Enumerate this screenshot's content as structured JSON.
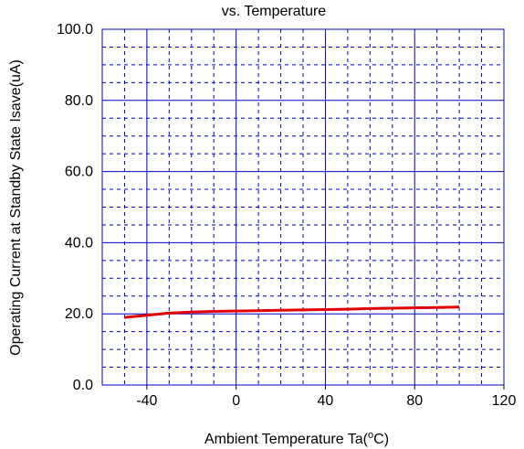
{
  "chart_data": {
    "type": "line",
    "title": "vs. Temperature",
    "xlabel_main": "Ambient Temperature  Ta(",
    "xlabel_sup": "o",
    "xlabel_end": "C)",
    "ylabel": "Operating Current at Standby State  Isave(uA)",
    "xlim": [
      -60,
      120
    ],
    "ylim": [
      0,
      100
    ],
    "x_ticks": [
      -40,
      0,
      40,
      80,
      120
    ],
    "x_tick_labels": [
      "-40",
      "0",
      "40",
      "80",
      "120"
    ],
    "y_ticks": [
      0,
      20,
      40,
      60,
      80,
      100
    ],
    "y_tick_labels": [
      "0.0",
      "20.0",
      "40.0",
      "60.0",
      "80.0",
      "100.0"
    ],
    "grid": true,
    "series": [
      {
        "color": "#e00000",
        "x": [
          -50,
          -40,
          -30,
          -20,
          -10,
          0,
          10,
          20,
          30,
          40,
          50,
          60,
          70,
          80,
          90,
          100
        ],
        "y": [
          19.0,
          19.6,
          20.2,
          20.5,
          20.7,
          20.8,
          20.9,
          21.0,
          21.1,
          21.2,
          21.3,
          21.5,
          21.6,
          21.7,
          21.8,
          21.9
        ]
      }
    ],
    "colors": {
      "major_grid": "#0000c0",
      "minor_grid": "#0000c0",
      "frame": "#0000c0"
    }
  }
}
